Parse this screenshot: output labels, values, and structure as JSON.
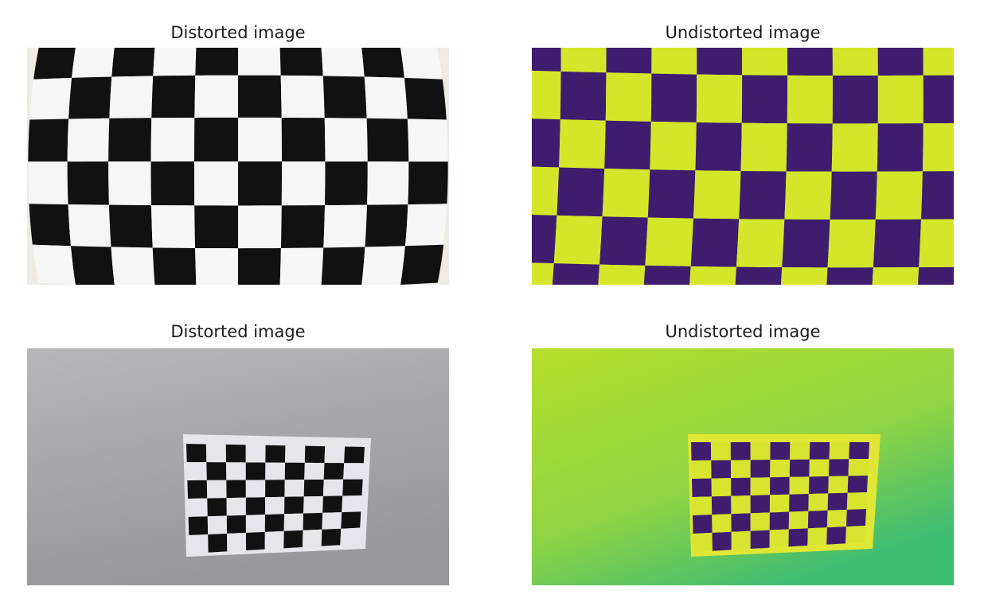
{
  "panels": [
    {
      "title": "Distorted image"
    },
    {
      "title": "Undistorted image"
    },
    {
      "title": "Distorted image"
    },
    {
      "title": "Undistorted image"
    }
  ],
  "colors": {
    "checker_dark": "#111111",
    "checker_light": "#f6f6f6",
    "viridis_dark": "#3f1c6e",
    "viridis_light": "#d5e62a",
    "wall_gray": "#a7a7a7",
    "viridis_wall": "#9fd43a"
  }
}
